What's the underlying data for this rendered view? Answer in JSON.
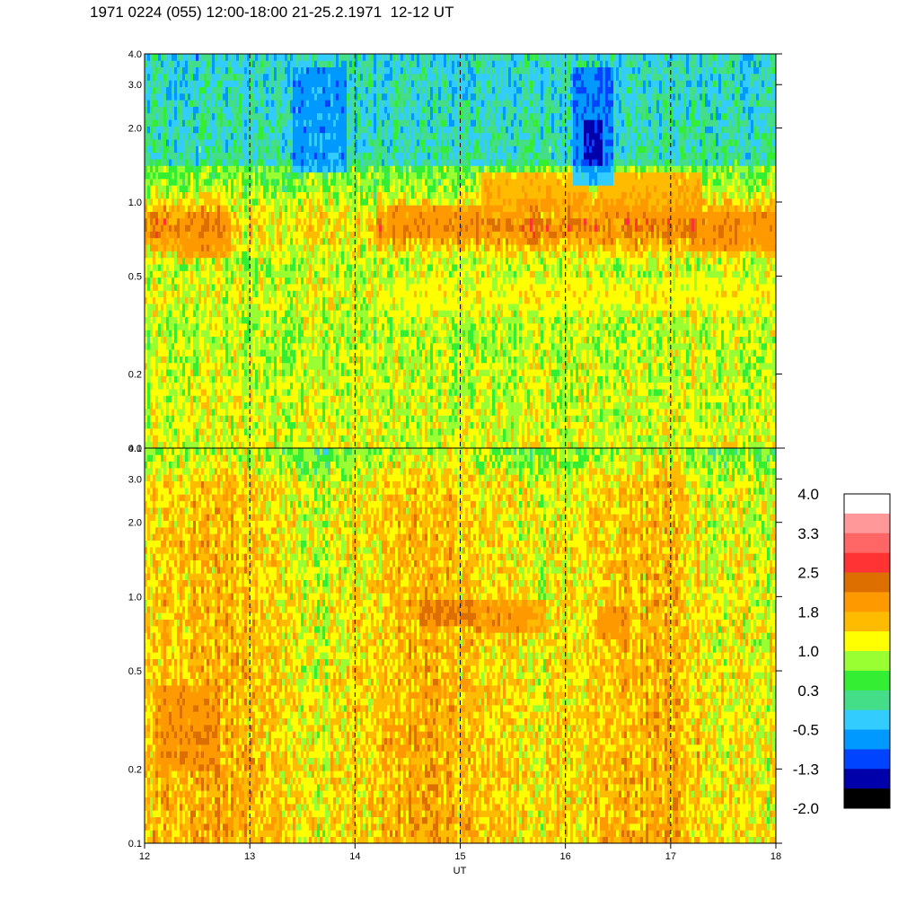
{
  "header": {
    "title": "1971 0224 (055) 12:00-18:00 21-25.2.1971  12-12 UT"
  },
  "chart_data": {
    "type": "heatmap",
    "title": "1971 0224 (055) 12:00-18:00 21-25.2.1971  12-12 UT",
    "xlabel": "UT",
    "xlim": [
      12,
      18
    ],
    "x_ticks": [
      "12",
      "13",
      "14",
      "15",
      "16",
      "17",
      "18"
    ],
    "x_dashed_gridlines": [
      13,
      14,
      15,
      16,
      17
    ],
    "y_scale": "log",
    "ylim": [
      0.1,
      4.0
    ],
    "y_ticks": [
      {
        "value": 0.1,
        "label": "0.1"
      },
      {
        "value": 0.2,
        "label": "0.2"
      },
      {
        "value": 0.5,
        "label": "0.5"
      },
      {
        "value": 1.0,
        "label": "1.0"
      },
      {
        "value": 2.0,
        "label": "2.0"
      },
      {
        "value": 3.0,
        "label": "3.0"
      },
      {
        "value": 4.0,
        "label": "4.0"
      }
    ],
    "panels": [
      {
        "dominant_band": "green-cyan background with an orange band near 0.6-1.3 and a yellow band near 0.35-0.5",
        "features": [
          {
            "x": [
              12.3,
              12.8
            ],
            "y": [
              0.58,
              0.85
            ],
            "level": 2.0
          },
          {
            "x": [
              14.3,
              15.2
            ],
            "y": [
              0.7,
              1.0
            ],
            "level": 2.0
          },
          {
            "x": [
              15.2,
              16.2
            ],
            "y": [
              0.9,
              1.35
            ],
            "level": 2.0
          },
          {
            "x": [
              16.3,
              17.3
            ],
            "y": [
              0.85,
              1.3
            ],
            "level": 2.0
          },
          {
            "x": [
              17.2,
              18.0
            ],
            "y": [
              0.62,
              0.9
            ],
            "level": 2.0
          },
          {
            "x": [
              14.2,
              18.0
            ],
            "y": [
              0.36,
              0.5
            ],
            "level": 1.0
          },
          {
            "x": [
              13.4,
              13.9
            ],
            "y": [
              1.3,
              3.5
            ],
            "level": -1.0
          },
          {
            "x": [
              16.05,
              16.45
            ],
            "y": [
              1.2,
              3.5
            ],
            "level": -1.2
          },
          {
            "x": [
              16.15,
              16.35
            ],
            "y": [
              1.4,
              2.1
            ],
            "level": -1.6
          }
        ]
      },
      {
        "dominant_band": "orange-yellow background with green speckle near the top and dark-orange patches near 0.8-1.0",
        "features": [
          {
            "x": [
              14.6,
              15.1
            ],
            "y": [
              0.78,
              1.0
            ],
            "level": 2.4
          },
          {
            "x": [
              15.1,
              15.8
            ],
            "y": [
              0.72,
              0.95
            ],
            "level": 2.2
          },
          {
            "x": [
              12.1,
              12.7
            ],
            "y": [
              0.2,
              0.45
            ],
            "level": 2.2
          },
          {
            "x": [
              16.3,
              16.6
            ],
            "y": [
              0.68,
              0.9
            ],
            "level": 2.1
          }
        ]
      }
    ],
    "colorbar": {
      "labels": [
        "4.0",
        "3.3",
        "2.5",
        "1.8",
        "1.0",
        "0.3",
        "-0.5",
        "-1.3",
        "-2.0"
      ],
      "colors": [
        "#ffffff",
        "#ff9999",
        "#ff6666",
        "#ff3333",
        "#dd6e00",
        "#ff9900",
        "#ffbb00",
        "#ffff00",
        "#99ff33",
        "#33ee33",
        "#44dd88",
        "#33ccff",
        "#0099ff",
        "#0044ff",
        "#0000aa",
        "#000000"
      ]
    }
  }
}
